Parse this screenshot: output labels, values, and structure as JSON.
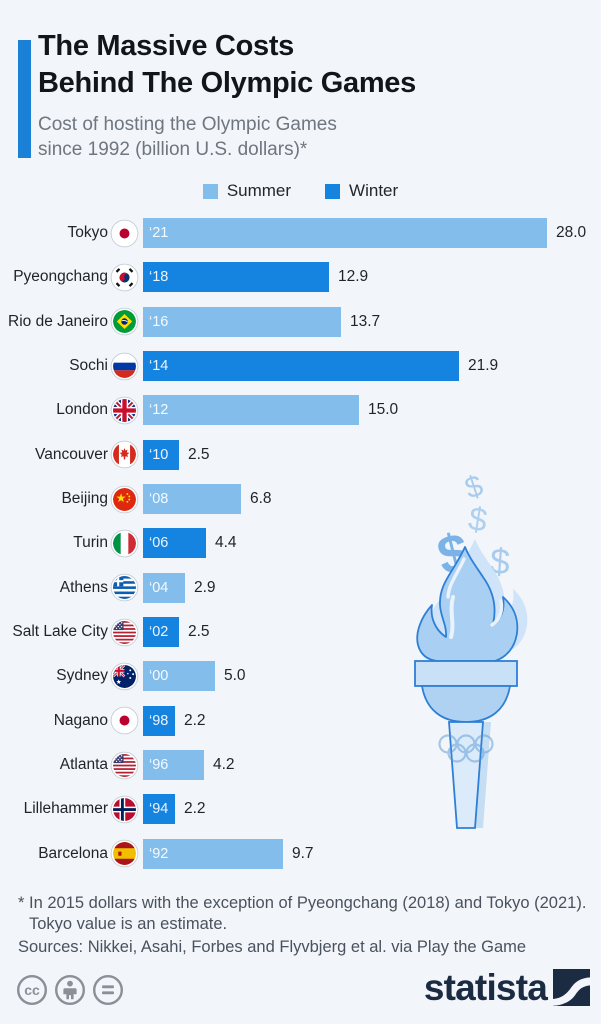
{
  "header": {
    "title_lines": [
      "The Massive Costs",
      "Behind The Olympic Games"
    ],
    "subtitle_lines": [
      "Cost of hosting the Olympic Games",
      "since 1992 (billion U.S. dollars)*"
    ]
  },
  "legend": [
    {
      "label": "Summer",
      "color": "#82BDEC"
    },
    {
      "label": "Winter",
      "color": "#1583E0"
    }
  ],
  "chart_data": {
    "type": "bar",
    "orientation": "horizontal",
    "title": "Cost of hosting the Olympic Games since 1992 (billion U.S. dollars)",
    "unit": "billion U.S. dollars",
    "xlim": [
      0,
      28
    ],
    "grid": false,
    "legend_position": "top-center",
    "rows": [
      {
        "city": "Tokyo",
        "flag": "jp",
        "year": "‘21",
        "value": 28.0,
        "label": "28.0",
        "season": "summer"
      },
      {
        "city": "Pyeongchang",
        "flag": "kr",
        "year": "‘18",
        "value": 12.9,
        "label": "12.9",
        "season": "winter"
      },
      {
        "city": "Rio de Janeiro",
        "flag": "br",
        "year": "‘16",
        "value": 13.7,
        "label": "13.7",
        "season": "summer"
      },
      {
        "city": "Sochi",
        "flag": "ru",
        "year": "‘14",
        "value": 21.9,
        "label": "21.9",
        "season": "winter"
      },
      {
        "city": "London",
        "flag": "gb",
        "year": "‘12",
        "value": 15.0,
        "label": "15.0",
        "season": "summer"
      },
      {
        "city": "Vancouver",
        "flag": "ca",
        "year": "‘10",
        "value": 2.5,
        "label": "2.5",
        "season": "winter"
      },
      {
        "city": "Beijing",
        "flag": "cn",
        "year": "‘08",
        "value": 6.8,
        "label": "6.8",
        "season": "summer"
      },
      {
        "city": "Turin",
        "flag": "it",
        "year": "‘06",
        "value": 4.4,
        "label": "4.4",
        "season": "winter"
      },
      {
        "city": "Athens",
        "flag": "gr",
        "year": "‘04",
        "value": 2.9,
        "label": "2.9",
        "season": "summer"
      },
      {
        "city": "Salt Lake City",
        "flag": "us",
        "year": "‘02",
        "value": 2.5,
        "label": "2.5",
        "season": "winter"
      },
      {
        "city": "Sydney",
        "flag": "au",
        "year": "‘00",
        "value": 5.0,
        "label": "5.0",
        "season": "summer"
      },
      {
        "city": "Nagano",
        "flag": "jp",
        "year": "‘98",
        "value": 2.2,
        "label": "2.2",
        "season": "winter"
      },
      {
        "city": "Atlanta",
        "flag": "us",
        "year": "‘96",
        "value": 4.2,
        "label": "4.2",
        "season": "summer"
      },
      {
        "city": "Lillehammer",
        "flag": "no",
        "year": "‘94",
        "value": 2.2,
        "label": "2.2",
        "season": "winter"
      },
      {
        "city": "Barcelona",
        "flag": "es",
        "year": "‘92",
        "value": 9.7,
        "label": "9.7",
        "season": "summer"
      }
    ]
  },
  "decor": {
    "dollar_signs": [
      "$",
      "$",
      "$",
      "$"
    ]
  },
  "footer": {
    "footnote_lines": [
      "* In 2015 dollars with the exception of Pyeongchang (2018) and Tokyo (2021).",
      "Tokyo value is an estimate."
    ],
    "sources": "Sources: Nikkei, Asahi, Forbes and Flyvbjerg et al. via Play the Game",
    "brand": "statista",
    "cc_icons": [
      "cc",
      "attribution",
      "equals"
    ]
  },
  "colors": {
    "background": "#F2F5F9",
    "accent": "#1B81D7",
    "summer": "#82BDEC",
    "winter": "#1583E0",
    "brand_navy": "#1B2B42",
    "text_dark": "#1F242B",
    "text_gray": "#6E7680",
    "footnote_gray": "#49525E"
  }
}
